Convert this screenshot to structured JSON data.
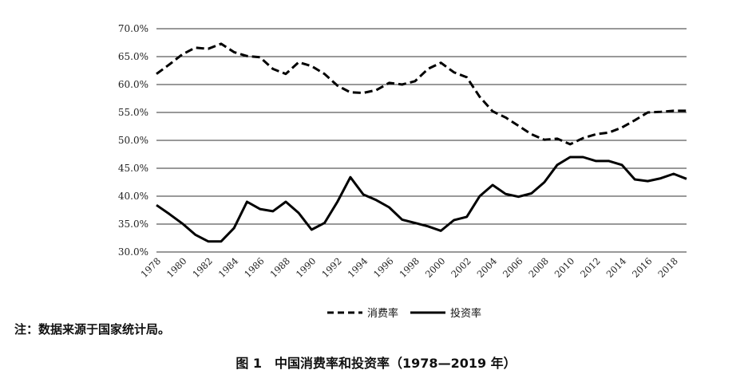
{
  "chart_data": {
    "type": "line",
    "title": "",
    "xlabel": "",
    "ylabel": "",
    "x": [
      1978,
      1979,
      1980,
      1981,
      1982,
      1983,
      1984,
      1985,
      1986,
      1987,
      1988,
      1989,
      1990,
      1991,
      1992,
      1993,
      1994,
      1995,
      1996,
      1997,
      1998,
      1999,
      2000,
      2001,
      2002,
      2003,
      2004,
      2005,
      2006,
      2007,
      2008,
      2009,
      2010,
      2011,
      2012,
      2013,
      2014,
      2015,
      2016,
      2017,
      2018,
      2019
    ],
    "x_tick_labels": [
      "1978",
      "1980",
      "1982",
      "1984",
      "1986",
      "1988",
      "1990",
      "1992",
      "1994",
      "1996",
      "1998",
      "2000",
      "2002",
      "2004",
      "2006",
      "2008",
      "2010",
      "2012",
      "2014",
      "2016",
      "2018"
    ],
    "y_tick_labels": [
      "30.0%",
      "35.0%",
      "40.0%",
      "45.0%",
      "50.0%",
      "55.0%",
      "60.0%",
      "65.0%",
      "70.0%"
    ],
    "ylim": [
      30,
      70
    ],
    "grid": "horizontal",
    "legend_position": "bottom-center",
    "series": [
      {
        "name": "消费率",
        "style": "dashed",
        "color": "#000000",
        "values": [
          61.9,
          63.6,
          65.4,
          66.6,
          66.4,
          67.3,
          65.8,
          65.1,
          64.9,
          62.8,
          61.9,
          64.0,
          63.3,
          61.9,
          59.8,
          58.6,
          58.5,
          59.0,
          60.3,
          60.0,
          60.6,
          62.8,
          63.9,
          62.2,
          61.3,
          57.8,
          55.2,
          54.1,
          52.6,
          51.1,
          50.1,
          50.3,
          49.3,
          50.4,
          51.1,
          51.4,
          52.3,
          53.6,
          55.0,
          55.1,
          55.3,
          55.3
        ]
      },
      {
        "name": "投资率",
        "style": "solid",
        "color": "#000000",
        "values": [
          38.4,
          36.8,
          35.1,
          33.1,
          31.9,
          31.9,
          34.3,
          39.0,
          37.7,
          37.3,
          39.0,
          37.0,
          34.0,
          35.2,
          39.0,
          43.4,
          40.3,
          39.3,
          38.0,
          35.8,
          35.2,
          34.6,
          33.8,
          35.7,
          36.3,
          40.0,
          42.0,
          40.4,
          39.9,
          40.5,
          42.5,
          45.6,
          47.0,
          47.0,
          46.3,
          46.3,
          45.6,
          43.0,
          42.7,
          43.2,
          44.0,
          43.1
        ]
      }
    ]
  },
  "note": "注：数据来源于国家统计局。",
  "caption": "图 1　中国消费率和投资率（1978—2019 年）"
}
